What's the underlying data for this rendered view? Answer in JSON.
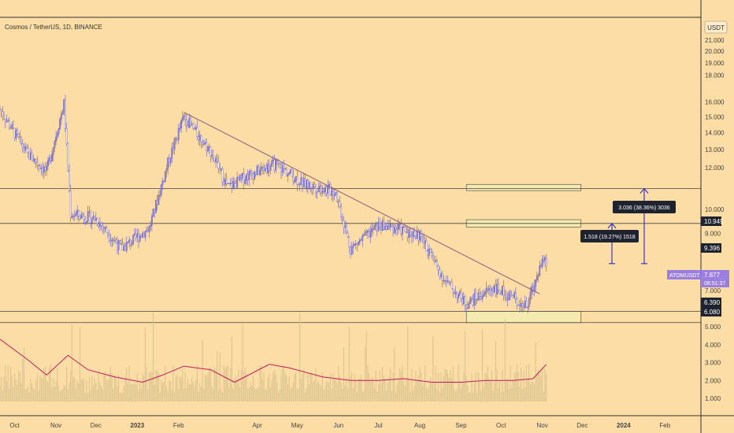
{
  "header": {
    "symbol_title": "Cosmos / TetherUS, 1D, BINANCE",
    "currency": "USDT"
  },
  "colors": {
    "background": "#FBDDA5",
    "candle": "#8B7FD6",
    "candle_dark": "#6A5FC2",
    "volume": "#D9C28F",
    "volume_ma": "#C2185B",
    "trendline": "#8E5A7A",
    "hline": "#555555",
    "zone_fill": "#F5EBB0",
    "arrow": "#3B34C9",
    "label_dark": "#1f2330",
    "ticker_badge": "#9B7FE0"
  },
  "price_axis": {
    "ticks": [
      "21.000",
      "20.000",
      "19.000",
      "18.000",
      "16.000",
      "15.000",
      "14.000",
      "13.000",
      "12.000",
      "10.000",
      "9.000",
      "7.000"
    ],
    "tick_values": [
      21,
      20,
      19,
      18,
      16,
      15,
      14,
      13,
      12,
      10,
      9,
      7
    ],
    "scale": "log",
    "ylim": [
      5.9,
      22.5
    ]
  },
  "volume_axis": {
    "ticks": [
      "5.000",
      "4.000",
      "3.000",
      "2.000",
      "1.000"
    ],
    "tick_values": [
      5,
      4,
      3,
      2,
      1
    ]
  },
  "time_axis": {
    "labels": [
      "Oct",
      "Nov",
      "Dec",
      "2023",
      "Feb",
      "Apr",
      "May",
      "Jun",
      "Jul",
      "Aug",
      "Sep",
      "Oct",
      "Nov",
      "Dec",
      "2024",
      "Feb"
    ]
  },
  "price_labels": {
    "resistance": "10.949",
    "mid_level": "9.396",
    "support_top": "6.390",
    "support_bottom": "6.080",
    "ticker": "ATOMUSDT",
    "last_price": "7.877",
    "countdown": "08:51:37"
  },
  "measurements": {
    "m1": "1.518 (19.27%) 1518",
    "m2": "3.036 (38.36%) 3036"
  },
  "chart_data": {
    "type": "candlestick",
    "title": "Cosmos / TetherUS, 1D, BINANCE",
    "yscale": "log",
    "ylim": [
      5.9,
      22.5
    ],
    "x_range": [
      "2022-09-20",
      "2024-02-28"
    ],
    "key_closes": [
      {
        "date": "2022-09-20",
        "price": 15.5
      },
      {
        "date": "2022-10-10",
        "price": 12.8
      },
      {
        "date": "2022-10-25",
        "price": 11.8
      },
      {
        "date": "2022-11-07",
        "price": 15.9
      },
      {
        "date": "2022-11-12",
        "price": 9.8
      },
      {
        "date": "2022-12-01",
        "price": 9.6
      },
      {
        "date": "2022-12-20",
        "price": 8.4
      },
      {
        "date": "2023-01-10",
        "price": 9.2
      },
      {
        "date": "2023-01-25",
        "price": 12.5
      },
      {
        "date": "2023-02-05",
        "price": 15.0
      },
      {
        "date": "2023-02-25",
        "price": 12.9
      },
      {
        "date": "2023-03-10",
        "price": 11.0
      },
      {
        "date": "2023-03-25",
        "price": 11.6
      },
      {
        "date": "2023-04-15",
        "price": 12.2
      },
      {
        "date": "2023-05-05",
        "price": 11.2
      },
      {
        "date": "2023-05-30",
        "price": 10.8
      },
      {
        "date": "2023-06-10",
        "price": 8.4
      },
      {
        "date": "2023-07-01",
        "price": 9.3
      },
      {
        "date": "2023-07-15",
        "price": 9.2
      },
      {
        "date": "2023-08-01",
        "price": 8.9
      },
      {
        "date": "2023-08-20",
        "price": 7.3
      },
      {
        "date": "2023-09-05",
        "price": 6.6
      },
      {
        "date": "2023-09-25",
        "price": 7.1
      },
      {
        "date": "2023-10-10",
        "price": 6.8
      },
      {
        "date": "2023-10-20",
        "price": 6.5
      },
      {
        "date": "2023-11-01",
        "price": 8.0
      },
      {
        "date": "2023-11-04",
        "price": 7.877
      }
    ],
    "trendline": [
      {
        "date": "2023-02-05",
        "price": 15.3
      },
      {
        "date": "2023-10-30",
        "price": 6.9
      }
    ],
    "horizontal_lines": [
      10.949,
      9.396,
      6.39,
      6.08
    ],
    "zones": [
      {
        "from": "2023-09-05",
        "to": "2023-11-30",
        "low": 10.85,
        "high": 11.15
      },
      {
        "from": "2023-09-05",
        "to": "2023-11-30",
        "low": 9.25,
        "high": 9.55
      },
      {
        "from": "2023-09-05",
        "to": "2023-11-30",
        "low": 6.08,
        "high": 6.39
      }
    ],
    "volume_ma": [
      {
        "date": "2022-09-20",
        "value": 4.3
      },
      {
        "date": "2022-10-10",
        "value": 3.2
      },
      {
        "date": "2022-10-25",
        "value": 2.3
      },
      {
        "date": "2022-11-10",
        "value": 3.4
      },
      {
        "date": "2022-11-25",
        "value": 2.6
      },
      {
        "date": "2022-12-15",
        "value": 2.2
      },
      {
        "date": "2023-01-05",
        "value": 1.9
      },
      {
        "date": "2023-01-20",
        "value": 2.3
      },
      {
        "date": "2023-02-05",
        "value": 2.8
      },
      {
        "date": "2023-02-25",
        "value": 2.6
      },
      {
        "date": "2023-03-15",
        "value": 1.9
      },
      {
        "date": "2023-04-10",
        "value": 2.9
      },
      {
        "date": "2023-04-25",
        "value": 2.7
      },
      {
        "date": "2023-05-20",
        "value": 2.2
      },
      {
        "date": "2023-06-10",
        "value": 2.0
      },
      {
        "date": "2023-07-01",
        "value": 2.0
      },
      {
        "date": "2023-07-20",
        "value": 2.1
      },
      {
        "date": "2023-08-10",
        "value": 1.9
      },
      {
        "date": "2023-09-01",
        "value": 1.9
      },
      {
        "date": "2023-09-20",
        "value": 2.0
      },
      {
        "date": "2023-10-10",
        "value": 2.0
      },
      {
        "date": "2023-10-25",
        "value": 2.1
      },
      {
        "date": "2023-11-04",
        "value": 2.9
      }
    ]
  }
}
